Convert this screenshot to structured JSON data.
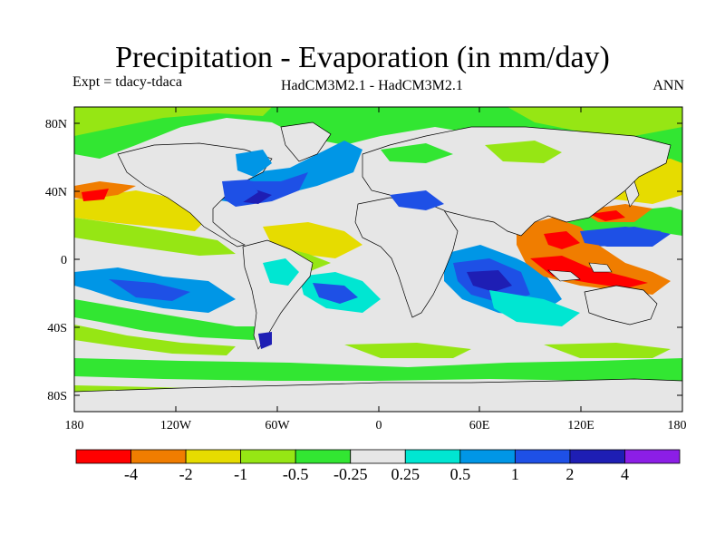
{
  "figure": {
    "title": "Precipitation - Evaporation (in mm/day)",
    "expt_label": "Expt = tdacy-tdaca",
    "model_label": "HadCM3M2.1 - HadCM3M2.1",
    "season_label": "ANN"
  },
  "axes": {
    "y_ticks": [
      "80N",
      "40N",
      "0",
      "40S",
      "80S"
    ],
    "x_ticks": [
      "180",
      "120W",
      "60W",
      "0",
      "60E",
      "120E",
      "180"
    ]
  },
  "colorbar": {
    "colors": [
      "#ff0000",
      "#f07d00",
      "#e6dc00",
      "#96e614",
      "#32e632",
      "#e6e6e6",
      "#00e6d2",
      "#0096e6",
      "#1e50e6",
      "#1e1eb4",
      "#8c1ee6"
    ],
    "labels": [
      "-4",
      "-2",
      "-1",
      "-0.5",
      "-0.25",
      "0.25",
      "0.5",
      "1",
      "2",
      "4"
    ]
  }
}
